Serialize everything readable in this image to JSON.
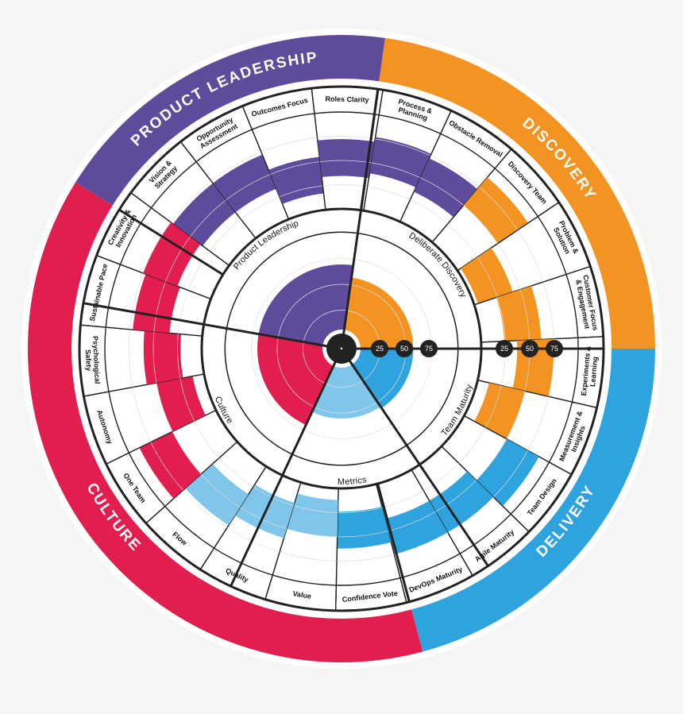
{
  "colors": {
    "product_leadership": "#5e4b9b",
    "discovery": "#f39322",
    "delivery": "#2fa3dd",
    "metrics": "#7fc6ea",
    "culture": "#e21e4f",
    "background": "#f5f5f5",
    "ring_line": "#222222"
  },
  "categories": [
    {
      "name": "PRODUCT LEADERSHIP",
      "key": "product_leadership"
    },
    {
      "name": "DISCOVERY",
      "key": "discovery"
    },
    {
      "name": "DELIVERY",
      "key": "delivery"
    },
    {
      "name": "CULTURE",
      "key": "culture"
    }
  ],
  "middle_sections": [
    {
      "name": "Product Leadership",
      "key": "product_leadership",
      "level": 0.75
    },
    {
      "name": "Deliberate Discovery",
      "key": "discovery",
      "level": 0.62
    },
    {
      "name": "Team Maturity",
      "key": "delivery",
      "level": 0.62
    },
    {
      "name": "Metrics",
      "key": "metrics",
      "level": 0.6
    },
    {
      "name": "Culture",
      "key": "culture",
      "level": 0.75
    }
  ],
  "segments": [
    {
      "label": "Vision & Strategy",
      "key": "product_leadership",
      "level": 0.72
    },
    {
      "label": "Opportunity Assessment",
      "key": "product_leadership",
      "level": 0.72
    },
    {
      "label": "Outcomes Focus",
      "key": "product_leadership",
      "level": 0.55
    },
    {
      "label": "Roles Clarity",
      "key": "product_leadership",
      "level": 0.72
    },
    {
      "label": "Process & Planning",
      "key": "product_leadership",
      "level": 0.77
    },
    {
      "label": "Obstacle Removal",
      "key": "product_leadership",
      "level": 0.72
    },
    {
      "label": "Discovery Team",
      "key": "discovery",
      "level": 0.88
    },
    {
      "label": "Problem & Solution",
      "key": "discovery",
      "level": 0.42
    },
    {
      "label": "Customer Focus & Engagement",
      "key": "discovery",
      "level": 0.62
    },
    {
      "label": "Experiments & Learning",
      "key": "discovery",
      "level": 0.75
    },
    {
      "label": "Measurement & Insights",
      "key": "discovery",
      "level": 0.5
    },
    {
      "label": "Team Design",
      "key": "delivery",
      "level": 0.88
    },
    {
      "label": "Agile Maturity",
      "key": "delivery",
      "level": 0.75
    },
    {
      "label": "DevOps Maturity",
      "key": "delivery",
      "level": 0.75
    },
    {
      "label": "Confidence Vote",
      "key": "delivery",
      "level": 0.62
    },
    {
      "label": "Value",
      "key": "metrics",
      "level": 0.5
    },
    {
      "label": "Quality",
      "key": "metrics",
      "level": 0.6
    },
    {
      "label": "Flow",
      "key": "metrics",
      "level": 0.72
    },
    {
      "label": "One Team",
      "key": "culture",
      "level": 0.88
    },
    {
      "label": "Autonomy",
      "key": "culture",
      "level": 0.5
    },
    {
      "label": "Psychological Safety",
      "key": "culture",
      "level": 0.6
    },
    {
      "label": "Sustainable Pace",
      "key": "culture",
      "level": 0.72
    },
    {
      "label": "Creativity & Innovation",
      "key": "culture",
      "level": 0.75
    }
  ],
  "scale": {
    "center_label": "•",
    "inner_ticks": [
      "25",
      "50",
      "75"
    ],
    "outer_ticks": [
      "25",
      "50",
      "75"
    ]
  }
}
